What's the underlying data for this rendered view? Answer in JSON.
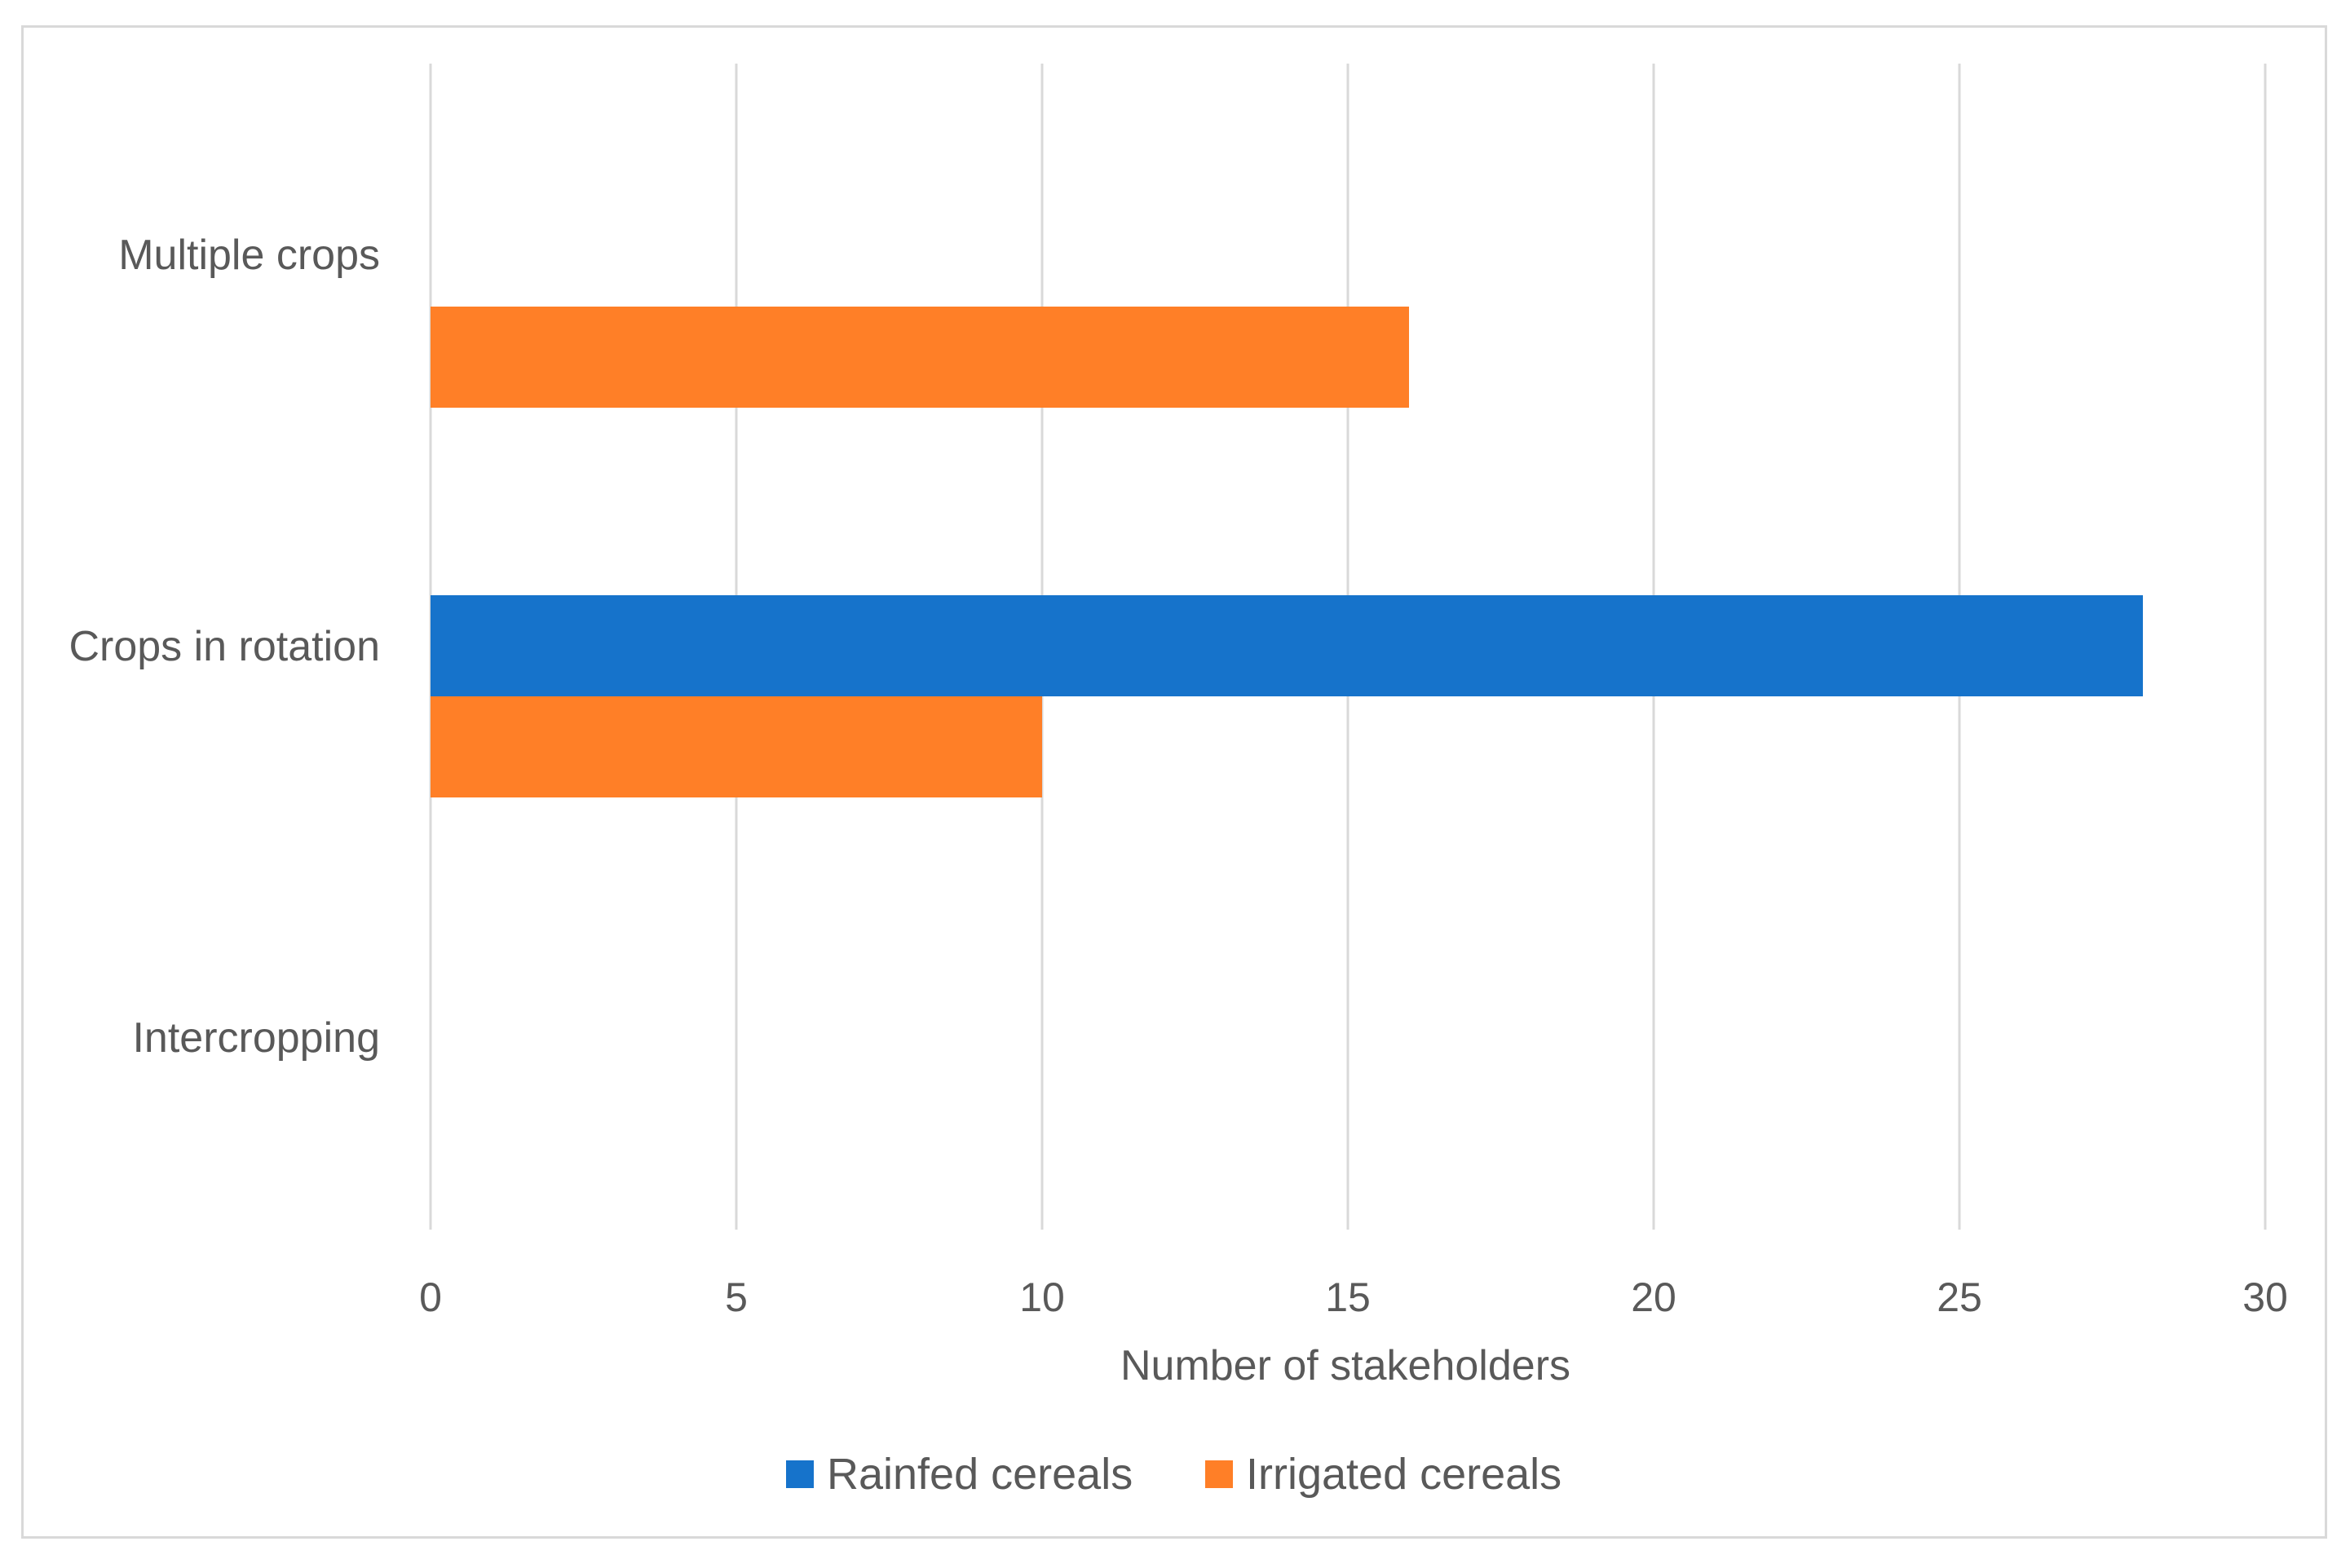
{
  "chart_data": {
    "type": "bar",
    "orientation": "horizontal",
    "categories": [
      "Multiple crops",
      "Crops in rotation",
      "Intercropping"
    ],
    "series": [
      {
        "name": "Rainfed cereals",
        "color": "#1673CB",
        "values": [
          0,
          28,
          0
        ]
      },
      {
        "name": "Irrigated cereals",
        "color": "#FF7F27",
        "values": [
          16,
          10,
          0
        ]
      }
    ],
    "title": "",
    "xlabel": "Number of stakeholders",
    "ylabel": "",
    "xlim": [
      0,
      30
    ],
    "xticks": [
      0,
      5,
      10,
      15,
      20,
      25,
      30
    ],
    "grid": true,
    "legend_position": "bottom"
  }
}
